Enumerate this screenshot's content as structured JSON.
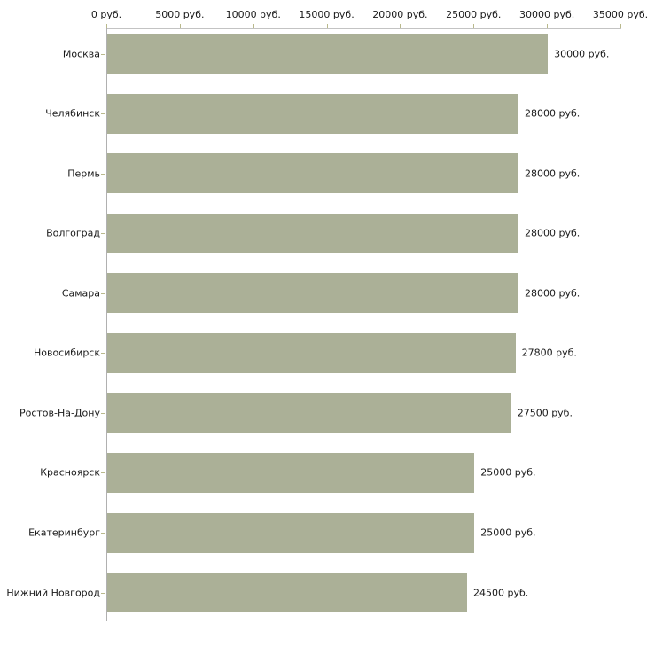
{
  "chart_data": {
    "type": "bar",
    "orientation": "horizontal",
    "title": "",
    "xlabel": "",
    "ylabel": "",
    "unit": "руб.",
    "categories": [
      "Москва",
      "Челябинск",
      "Пермь",
      "Волгоград",
      "Самара",
      "Новосибирск",
      "Ростов-На-Дону",
      "Красноярск",
      "Екатеринбург",
      "Нижний Новгород"
    ],
    "values": [
      30000,
      28000,
      28000,
      28000,
      28000,
      27800,
      27500,
      25000,
      25000,
      24500
    ],
    "value_labels": [
      "30000 руб.",
      "28000 руб.",
      "28000 руб.",
      "28000 руб.",
      "28000 руб.",
      "27800 руб.",
      "27500 руб.",
      "25000 руб.",
      "25000 руб.",
      "24500 руб."
    ],
    "x_tick_values": [
      0,
      5000,
      10000,
      15000,
      20000,
      25000,
      30000,
      35000
    ],
    "x_tick_labels": [
      "0 руб.",
      "5000 руб.",
      "10000 руб.",
      "15000 руб.",
      "20000 руб.",
      "25000 руб.",
      "30000 руб.",
      "35000 руб."
    ],
    "xlim": [
      0,
      35000
    ],
    "grid": false,
    "legend": false,
    "colors": {
      "bar": "#abb097",
      "x_axis_line": "#c3c3c3",
      "y_axis_line": "#b0b0b0",
      "tick_mark": "#b9b98c",
      "text": "#1a1a1a",
      "background": "#ffffff"
    }
  }
}
